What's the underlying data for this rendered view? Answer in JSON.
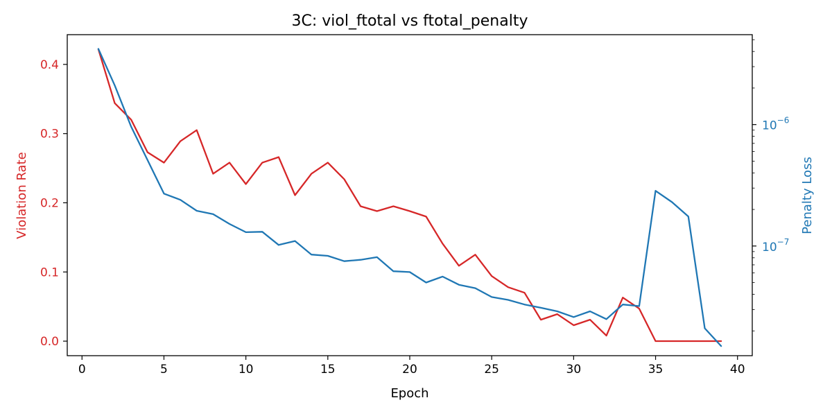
{
  "chart_data": {
    "type": "line",
    "title": "3C: viol_ftotal vs ftotal_penalty",
    "xlabel": "Epoch",
    "ylabel_left": "Violation Rate",
    "ylabel_right": "Penalty Loss",
    "x_ticks": [
      "0",
      "5",
      "10",
      "15",
      "20",
      "25",
      "30",
      "35",
      "40"
    ],
    "left_ticks": [
      "0.0",
      "0.1",
      "0.2",
      "0.3",
      "0.4"
    ],
    "right_ticks": [
      {
        "base": "10",
        "exp": "−7",
        "value": 1e-07
      },
      {
        "base": "10",
        "exp": "−6",
        "value": 1e-06
      }
    ],
    "xlim": [
      -0.9,
      40.9
    ],
    "ylim_left": [
      -0.021,
      0.443
    ],
    "ylim_right_log": [
      1.25e-08,
      5.5e-06
    ],
    "right_scale": "log",
    "grid": false,
    "colors": {
      "violation": "#d62728",
      "penalty": "#1f77b4"
    },
    "series": [
      {
        "axis": "left",
        "x": [
          1,
          2,
          3,
          4,
          5,
          6,
          7,
          8,
          9,
          10,
          11,
          12,
          13,
          14,
          15,
          16,
          17,
          18,
          19,
          20,
          21,
          22,
          23,
          24,
          25,
          26,
          27,
          28,
          29,
          30,
          31,
          32,
          33,
          34,
          35,
          36,
          37,
          38,
          39
        ],
        "values": [
          0.422,
          0.344,
          0.32,
          0.273,
          0.258,
          0.289,
          0.305,
          0.242,
          0.258,
          0.227,
          0.258,
          0.266,
          0.211,
          0.242,
          0.258,
          0.234,
          0.195,
          0.188,
          0.195,
          0.188,
          0.18,
          0.141,
          0.109,
          0.125,
          0.094,
          0.078,
          0.07,
          0.031,
          0.039,
          0.023,
          0.031,
          0.008,
          0.063,
          0.047,
          0.0,
          0.0,
          0.0,
          0.0,
          0.0
        ]
      },
      {
        "axis": "right",
        "x": [
          1,
          2,
          3,
          4,
          5,
          6,
          7,
          8,
          9,
          10,
          11,
          12,
          13,
          14,
          15,
          16,
          17,
          18,
          19,
          20,
          21,
          22,
          23,
          24,
          25,
          26,
          27,
          28,
          29,
          30,
          31,
          32,
          33,
          34,
          35,
          36,
          37,
          38,
          39
        ],
        "values": [
          4.2e-06,
          2.1e-06,
          9.6e-07,
          5.1e-07,
          2.7e-07,
          2.4e-07,
          1.95e-07,
          1.83e-07,
          1.52e-07,
          1.3e-07,
          1.31e-07,
          1.02e-07,
          1.1e-07,
          8.5e-08,
          8.3e-08,
          7.5e-08,
          7.7e-08,
          8.1e-08,
          6.2e-08,
          6.1e-08,
          5e-08,
          5.6e-08,
          4.8e-08,
          4.5e-08,
          3.8e-08,
          3.6e-08,
          3.3e-08,
          3.1e-08,
          2.9e-08,
          2.6e-08,
          2.9e-08,
          2.5e-08,
          3.3e-08,
          3.2e-08,
          2.85e-07,
          2.3e-07,
          1.75e-07,
          2.1e-08,
          1.5e-08
        ]
      }
    ]
  }
}
